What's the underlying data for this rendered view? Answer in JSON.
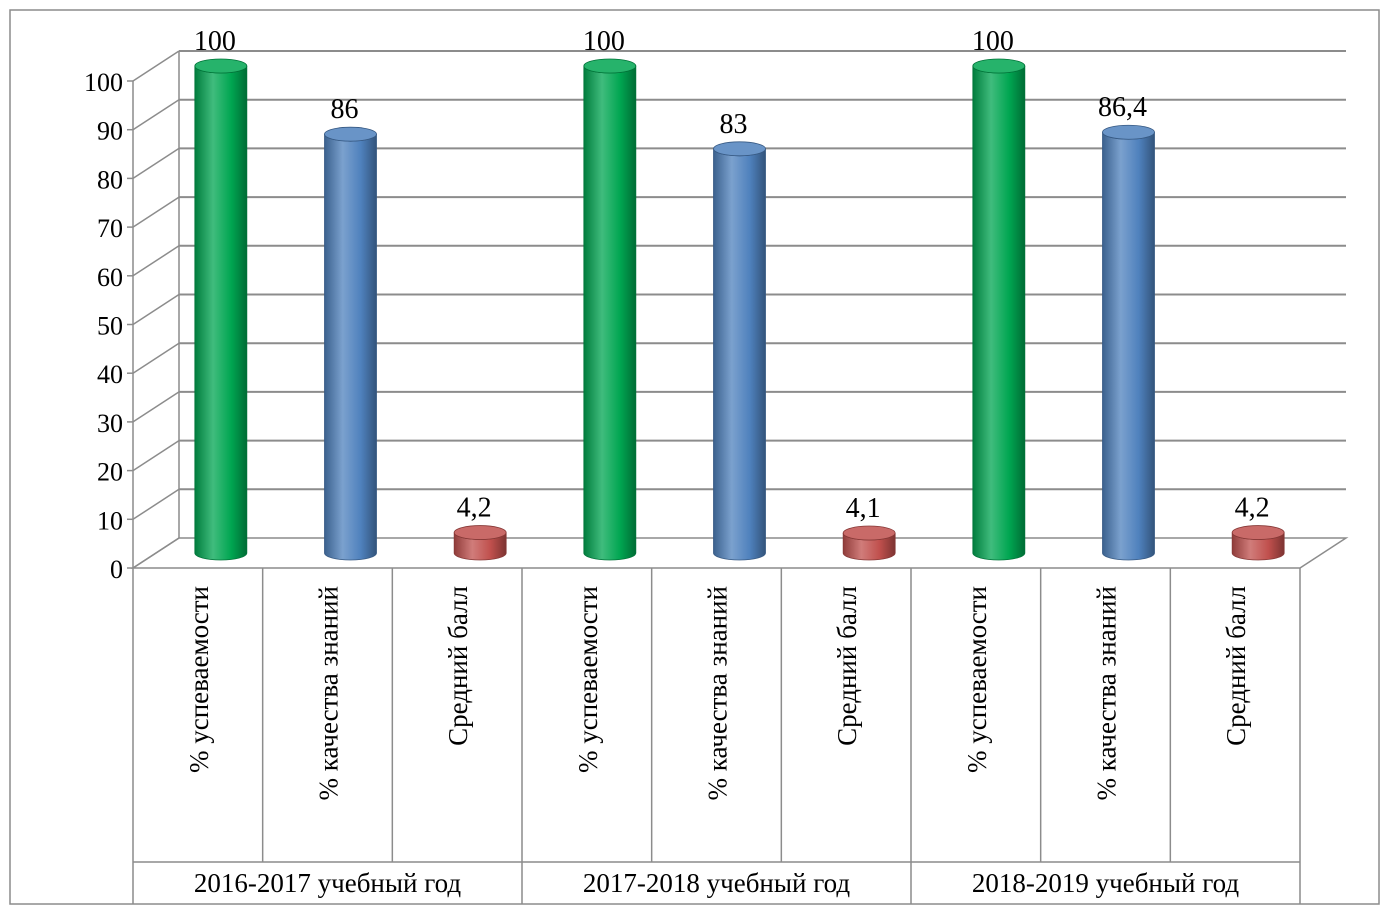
{
  "chart_data": {
    "type": "bar",
    "style": "3d-cylinder",
    "ylim": [
      0,
      100
    ],
    "yticks": [
      "0",
      "10",
      "20",
      "30",
      "40",
      "50",
      "60",
      "70",
      "80",
      "90",
      "100"
    ],
    "grid": true,
    "groups": [
      {
        "label": "2016-2017 учебный год",
        "bars": [
          {
            "label": "% успеваемости",
            "value": 100,
            "value_label": "100",
            "color": "#00a651"
          },
          {
            "label": "% качества знаний",
            "value": 86,
            "value_label": "86",
            "color": "#4f81bd"
          },
          {
            "label": "Средний балл",
            "value": 4.2,
            "value_label": "4,2",
            "color": "#c0504d"
          }
        ]
      },
      {
        "label": "2017-2018 учебный год",
        "bars": [
          {
            "label": "% успеваемости",
            "value": 100,
            "value_label": "100",
            "color": "#00a651"
          },
          {
            "label": "% качества знаний",
            "value": 83,
            "value_label": "83",
            "color": "#4f81bd"
          },
          {
            "label": "Средний балл",
            "value": 4.1,
            "value_label": "4,1",
            "color": "#c0504d"
          }
        ]
      },
      {
        "label": "2018-2019 учебный год",
        "bars": [
          {
            "label": "% успеваемости",
            "value": 100,
            "value_label": "100",
            "color": "#00a651"
          },
          {
            "label": "% качества знаний",
            "value": 86.4,
            "value_label": "86,4",
            "color": "#4f81bd"
          },
          {
            "label": "Средний балл",
            "value": 4.2,
            "value_label": "4,2",
            "color": "#c0504d"
          }
        ]
      }
    ]
  }
}
